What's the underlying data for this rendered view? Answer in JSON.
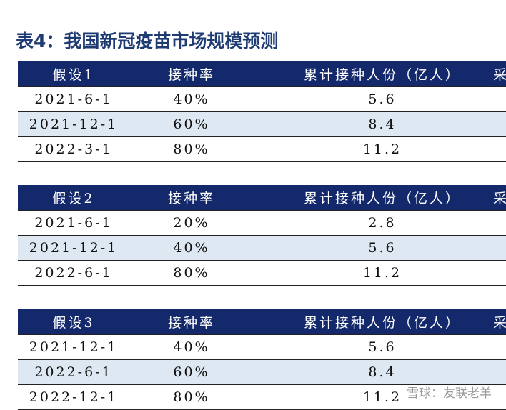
{
  "title": "表4：我国新冠疫苗市场规模预测",
  "tables": [
    {
      "header": [
        "假设1",
        "接种率",
        "累计接种人份（亿人）",
        "采"
      ],
      "rows": [
        [
          "2021-6-1",
          "40%",
          "5.6"
        ],
        [
          "2021-12-1",
          "60%",
          "8.4"
        ],
        [
          "2022-3-1",
          "80%",
          "11.2"
        ]
      ]
    },
    {
      "header": [
        "假设2",
        "接种率",
        "累计接种人份（亿人）",
        "采"
      ],
      "rows": [
        [
          "2021-6-1",
          "20%",
          "2.8"
        ],
        [
          "2021-12-1",
          "40%",
          "5.6"
        ],
        [
          "2022-6-1",
          "80%",
          "11.2"
        ]
      ]
    },
    {
      "header": [
        "假设3",
        "接种率",
        "累计接种人份（亿人）",
        "采"
      ],
      "rows": [
        [
          "2021-12-1",
          "40%",
          "5.6"
        ],
        [
          "2022-6-1",
          "60%",
          "8.4"
        ],
        [
          "2022-12-1",
          "80%",
          "11.2"
        ]
      ]
    }
  ],
  "watermark": "雪球：友联老羊"
}
